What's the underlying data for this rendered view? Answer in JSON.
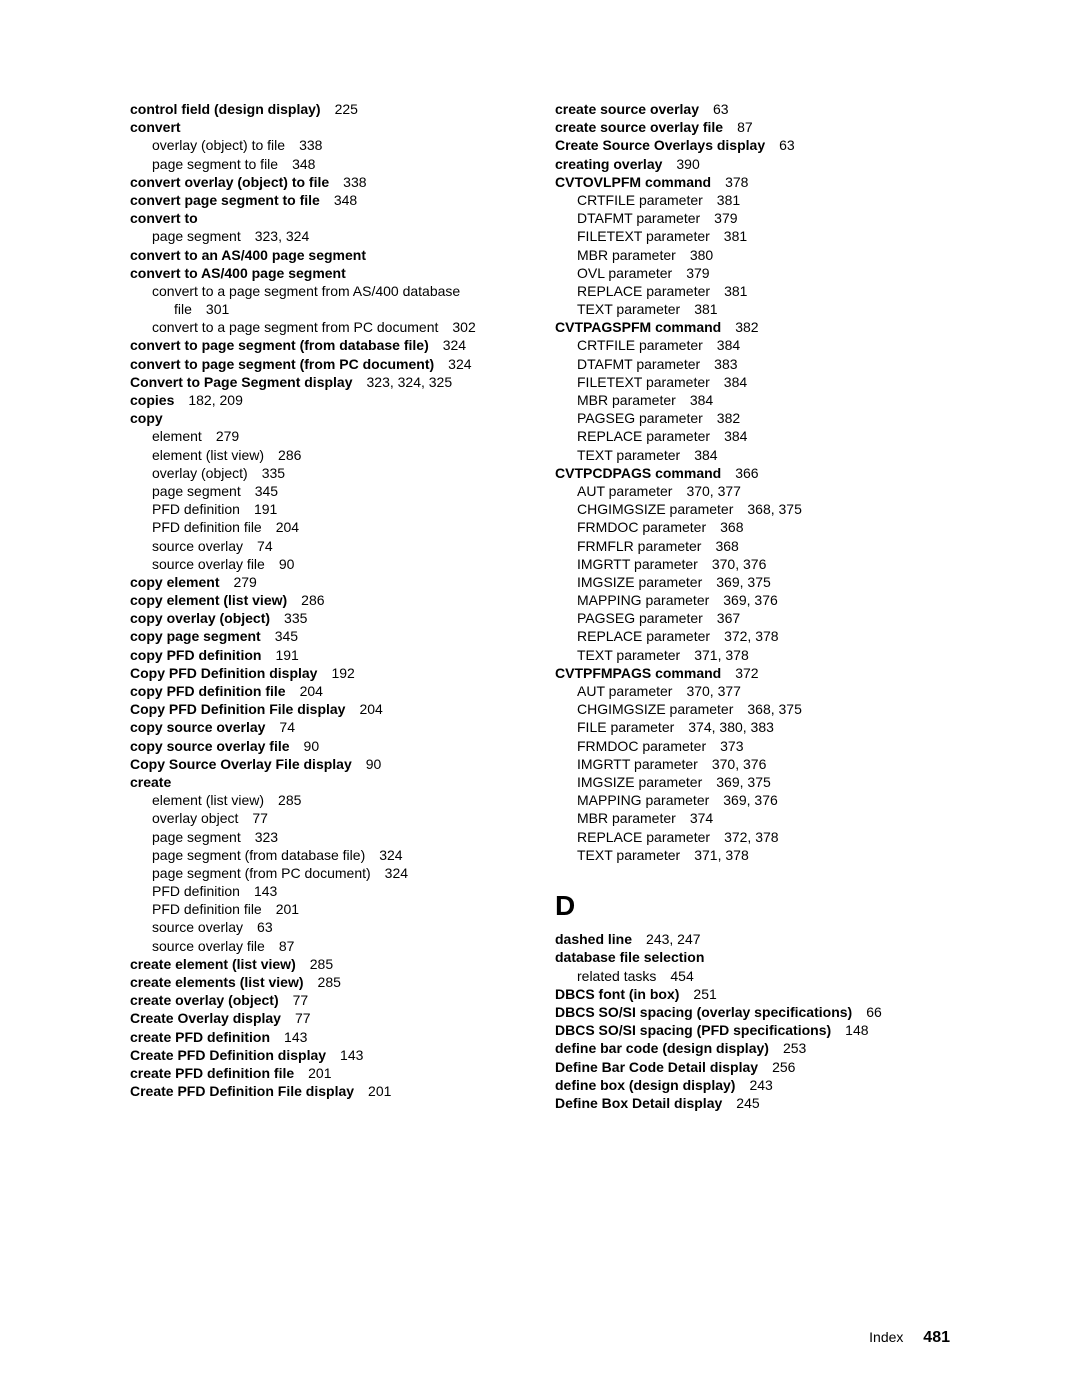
{
  "left": [
    {
      "t": "control field (design display)",
      "p": "225",
      "b": true,
      "i": 0
    },
    {
      "t": "convert",
      "p": "",
      "b": true,
      "i": 0
    },
    {
      "t": "overlay (object) to file",
      "p": "338",
      "b": false,
      "i": 1
    },
    {
      "t": "page segment to file",
      "p": "348",
      "b": false,
      "i": 1
    },
    {
      "t": "convert overlay (object) to file",
      "p": "338",
      "b": true,
      "i": 0
    },
    {
      "t": "convert page segment to file",
      "p": "348",
      "b": true,
      "i": 0
    },
    {
      "t": "convert to",
      "p": "",
      "b": true,
      "i": 0
    },
    {
      "t": "page segment",
      "p": "323, 324",
      "b": false,
      "i": 1
    },
    {
      "t": "convert to an AS/400 page segment",
      "p": "",
      "b": true,
      "i": 0
    },
    {
      "t": "convert to AS/400 page segment",
      "p": "",
      "b": true,
      "i": 0
    },
    {
      "t": "convert to a page segment from AS/400 database",
      "p": "",
      "b": false,
      "i": 1
    },
    {
      "t": "file",
      "p": "301",
      "b": false,
      "i": 2
    },
    {
      "t": "convert to a page segment from PC document",
      "p": "302",
      "b": false,
      "i": 1
    },
    {
      "t": "convert to page segment (from database file)",
      "p": "324",
      "b": true,
      "i": 0
    },
    {
      "t": "convert to page segment (from PC document)",
      "p": "324",
      "b": true,
      "i": 0
    },
    {
      "t": "Convert to Page Segment display",
      "p": "323, 324, 325",
      "b": true,
      "i": 0
    },
    {
      "t": "copies",
      "p": "182, 209",
      "b": true,
      "i": 0
    },
    {
      "t": "copy",
      "p": "",
      "b": true,
      "i": 0
    },
    {
      "t": "element",
      "p": "279",
      "b": false,
      "i": 1
    },
    {
      "t": "element (list view)",
      "p": "286",
      "b": false,
      "i": 1
    },
    {
      "t": "overlay (object)",
      "p": "335",
      "b": false,
      "i": 1
    },
    {
      "t": "page segment",
      "p": "345",
      "b": false,
      "i": 1
    },
    {
      "t": "PFD definition",
      "p": "191",
      "b": false,
      "i": 1
    },
    {
      "t": "PFD definition file",
      "p": "204",
      "b": false,
      "i": 1
    },
    {
      "t": "source overlay",
      "p": "74",
      "b": false,
      "i": 1
    },
    {
      "t": "source overlay file",
      "p": "90",
      "b": false,
      "i": 1
    },
    {
      "t": "copy element",
      "p": "279",
      "b": true,
      "i": 0
    },
    {
      "t": "copy element (list view)",
      "p": "286",
      "b": true,
      "i": 0
    },
    {
      "t": "copy overlay (object)",
      "p": "335",
      "b": true,
      "i": 0
    },
    {
      "t": "copy page segment",
      "p": "345",
      "b": true,
      "i": 0
    },
    {
      "t": "copy PFD definition",
      "p": "191",
      "b": true,
      "i": 0
    },
    {
      "t": "Copy PFD Definition display",
      "p": "192",
      "b": true,
      "i": 0
    },
    {
      "t": "copy PFD definition file",
      "p": "204",
      "b": true,
      "i": 0
    },
    {
      "t": "Copy PFD Definition File display",
      "p": "204",
      "b": true,
      "i": 0
    },
    {
      "t": "copy source overlay",
      "p": "74",
      "b": true,
      "i": 0
    },
    {
      "t": "copy source overlay file",
      "p": "90",
      "b": true,
      "i": 0
    },
    {
      "t": "Copy Source Overlay File display",
      "p": "90",
      "b": true,
      "i": 0
    },
    {
      "t": "create",
      "p": "",
      "b": true,
      "i": 0
    },
    {
      "t": "element (list view)",
      "p": "285",
      "b": false,
      "i": 1
    },
    {
      "t": "overlay object",
      "p": "77",
      "b": false,
      "i": 1
    },
    {
      "t": "page segment",
      "p": "323",
      "b": false,
      "i": 1
    },
    {
      "t": "page segment (from database file)",
      "p": "324",
      "b": false,
      "i": 1
    },
    {
      "t": "page segment (from PC document)",
      "p": "324",
      "b": false,
      "i": 1
    },
    {
      "t": "PFD definition",
      "p": "143",
      "b": false,
      "i": 1
    },
    {
      "t": "PFD definition file",
      "p": "201",
      "b": false,
      "i": 1
    },
    {
      "t": "source overlay",
      "p": "63",
      "b": false,
      "i": 1
    },
    {
      "t": "source overlay file",
      "p": "87",
      "b": false,
      "i": 1
    },
    {
      "t": "create element (list view)",
      "p": "285",
      "b": true,
      "i": 0
    },
    {
      "t": "create elements (list view)",
      "p": "285",
      "b": true,
      "i": 0
    },
    {
      "t": "create overlay (object)",
      "p": "77",
      "b": true,
      "i": 0
    },
    {
      "t": "Create Overlay display",
      "p": "77",
      "b": true,
      "i": 0
    },
    {
      "t": "create PFD definition",
      "p": "143",
      "b": true,
      "i": 0
    },
    {
      "t": "Create PFD Definition display",
      "p": "143",
      "b": true,
      "i": 0
    },
    {
      "t": "create PFD definition file",
      "p": "201",
      "b": true,
      "i": 0
    },
    {
      "t": "Create PFD Definition File display",
      "p": "201",
      "b": true,
      "i": 0
    }
  ],
  "right": [
    {
      "t": "create source overlay",
      "p": "63",
      "b": true,
      "i": 0
    },
    {
      "t": "create source overlay file",
      "p": "87",
      "b": true,
      "i": 0
    },
    {
      "t": "Create Source Overlays display",
      "p": "63",
      "b": true,
      "i": 0
    },
    {
      "t": "creating overlay",
      "p": "390",
      "b": true,
      "i": 0
    },
    {
      "t": "CVTOVLPFM command",
      "p": "378",
      "b": true,
      "i": 0
    },
    {
      "t": "CRTFILE parameter",
      "p": "381",
      "b": false,
      "i": 1
    },
    {
      "t": "DTAFMT parameter",
      "p": "379",
      "b": false,
      "i": 1
    },
    {
      "t": "FILETEXT parameter",
      "p": "381",
      "b": false,
      "i": 1
    },
    {
      "t": "MBR parameter",
      "p": "380",
      "b": false,
      "i": 1
    },
    {
      "t": "OVL parameter",
      "p": "379",
      "b": false,
      "i": 1
    },
    {
      "t": "REPLACE parameter",
      "p": "381",
      "b": false,
      "i": 1
    },
    {
      "t": "TEXT parameter",
      "p": "381",
      "b": false,
      "i": 1
    },
    {
      "t": "CVTPAGSPFM command",
      "p": "382",
      "b": true,
      "i": 0
    },
    {
      "t": "CRTFILE parameter",
      "p": "384",
      "b": false,
      "i": 1
    },
    {
      "t": "DTAFMT parameter",
      "p": "383",
      "b": false,
      "i": 1
    },
    {
      "t": "FILETEXT parameter",
      "p": "384",
      "b": false,
      "i": 1
    },
    {
      "t": "MBR parameter",
      "p": "384",
      "b": false,
      "i": 1
    },
    {
      "t": "PAGSEG parameter",
      "p": "382",
      "b": false,
      "i": 1
    },
    {
      "t": "REPLACE parameter",
      "p": "384",
      "b": false,
      "i": 1
    },
    {
      "t": "TEXT parameter",
      "p": "384",
      "b": false,
      "i": 1
    },
    {
      "t": "CVTPCDPAGS command",
      "p": "366",
      "b": true,
      "i": 0
    },
    {
      "t": "AUT parameter",
      "p": "370, 377",
      "b": false,
      "i": 1
    },
    {
      "t": "CHGIMGSIZE parameter",
      "p": "368, 375",
      "b": false,
      "i": 1
    },
    {
      "t": "FRMDOC parameter",
      "p": "368",
      "b": false,
      "i": 1
    },
    {
      "t": "FRMFLR parameter",
      "p": "368",
      "b": false,
      "i": 1
    },
    {
      "t": "IMGRTT parameter",
      "p": "370, 376",
      "b": false,
      "i": 1
    },
    {
      "t": "IMGSIZE parameter",
      "p": "369, 375",
      "b": false,
      "i": 1
    },
    {
      "t": "MAPPING parameter",
      "p": "369, 376",
      "b": false,
      "i": 1
    },
    {
      "t": "PAGSEG parameter",
      "p": "367",
      "b": false,
      "i": 1
    },
    {
      "t": "REPLACE parameter",
      "p": "372, 378",
      "b": false,
      "i": 1
    },
    {
      "t": "TEXT parameter",
      "p": "371, 378",
      "b": false,
      "i": 1
    },
    {
      "t": "CVTPFMPAGS command",
      "p": "372",
      "b": true,
      "i": 0
    },
    {
      "t": "AUT parameter",
      "p": "370, 377",
      "b": false,
      "i": 1
    },
    {
      "t": "CHGIMGSIZE parameter",
      "p": "368, 375",
      "b": false,
      "i": 1
    },
    {
      "t": "FILE parameter",
      "p": "374, 380, 383",
      "b": false,
      "i": 1
    },
    {
      "t": "FRMDOC parameter",
      "p": "373",
      "b": false,
      "i": 1
    },
    {
      "t": "IMGRTT parameter",
      "p": "370, 376",
      "b": false,
      "i": 1
    },
    {
      "t": "IMGSIZE parameter",
      "p": "369, 375",
      "b": false,
      "i": 1
    },
    {
      "t": "MAPPING parameter",
      "p": "369, 376",
      "b": false,
      "i": 1
    },
    {
      "t": "MBR parameter",
      "p": "374",
      "b": false,
      "i": 1
    },
    {
      "t": "REPLACE parameter",
      "p": "372, 378",
      "b": false,
      "i": 1
    },
    {
      "t": "TEXT parameter",
      "p": "371, 378",
      "b": false,
      "i": 1
    }
  ],
  "section_d_heading": "D",
  "right_d": [
    {
      "t": "dashed line",
      "p": "243, 247",
      "b": true,
      "i": 0
    },
    {
      "t": "database file selection",
      "p": "",
      "b": true,
      "i": 0
    },
    {
      "t": "related tasks",
      "p": "454",
      "b": false,
      "i": 1
    },
    {
      "t": "DBCS font (in box)",
      "p": "251",
      "b": true,
      "i": 0
    },
    {
      "t": "DBCS SO/SI spacing (overlay specifications)",
      "p": "66",
      "b": true,
      "i": 0
    },
    {
      "t": "DBCS SO/SI spacing (PFD specifications)",
      "p": "148",
      "b": true,
      "i": 0
    },
    {
      "t": "define bar code (design display)",
      "p": "253",
      "b": true,
      "i": 0
    },
    {
      "t": "Define Bar Code Detail display",
      "p": "256",
      "b": true,
      "i": 0
    },
    {
      "t": "define box (design display)",
      "p": "243",
      "b": true,
      "i": 0
    },
    {
      "t": "Define Box Detail display",
      "p": "245",
      "b": true,
      "i": 0
    }
  ],
  "footer": {
    "section": "Index",
    "page": "481"
  }
}
